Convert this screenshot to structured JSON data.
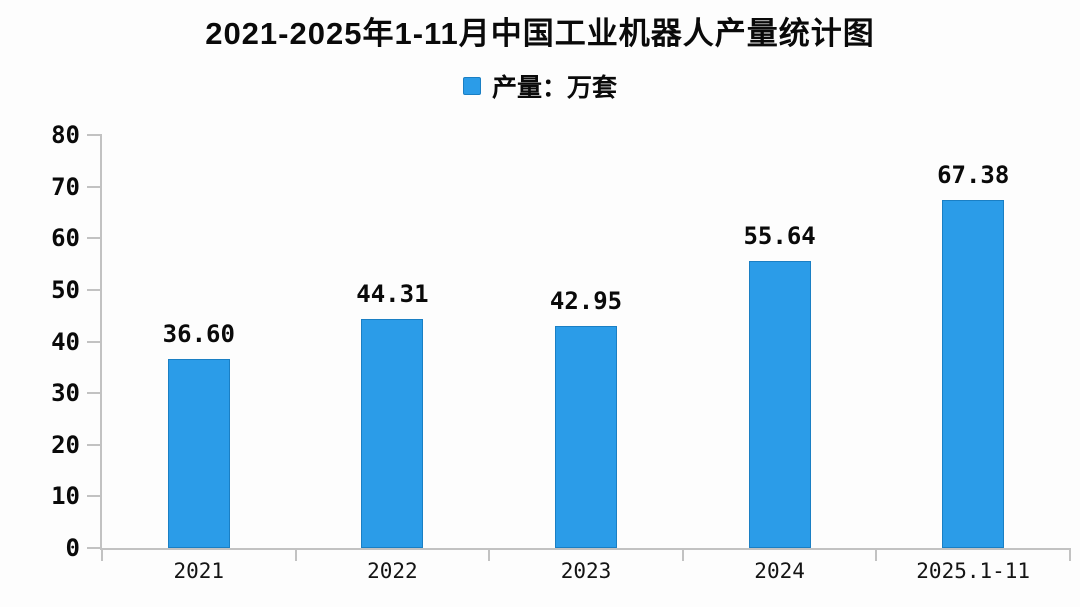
{
  "page": {
    "title": "2021-2025年1-11月中国工业机器人产量统计图",
    "legend": {
      "label": "产量：万套",
      "marker_color": "#2b9ce8"
    }
  },
  "chart_data": {
    "type": "bar",
    "title": "2021-2025年1-11月中国工业机器人产量统计图",
    "series_name": "产量：万套",
    "categories": [
      "2021",
      "2022",
      "2023",
      "2024",
      "2025.1-11"
    ],
    "values": [
      36.6,
      44.31,
      42.95,
      55.64,
      67.38
    ],
    "value_labels": [
      "36.60",
      "44.31",
      "42.95",
      "55.64",
      "67.38"
    ],
    "xlabel": "",
    "ylabel": "",
    "ylim": [
      0,
      80
    ],
    "ytick_step": 10,
    "ytick_labels": [
      "0",
      "10",
      "20",
      "30",
      "40",
      "50",
      "60",
      "70",
      "80"
    ],
    "grid": false,
    "legend_position": "top-center",
    "bar_color": "#2b9ce8",
    "bar_border_color": "#1a7fc4",
    "axis_color": "#c2c2c2",
    "text_color": "#0a0a0a",
    "background_color": "#fdfdfd"
  }
}
